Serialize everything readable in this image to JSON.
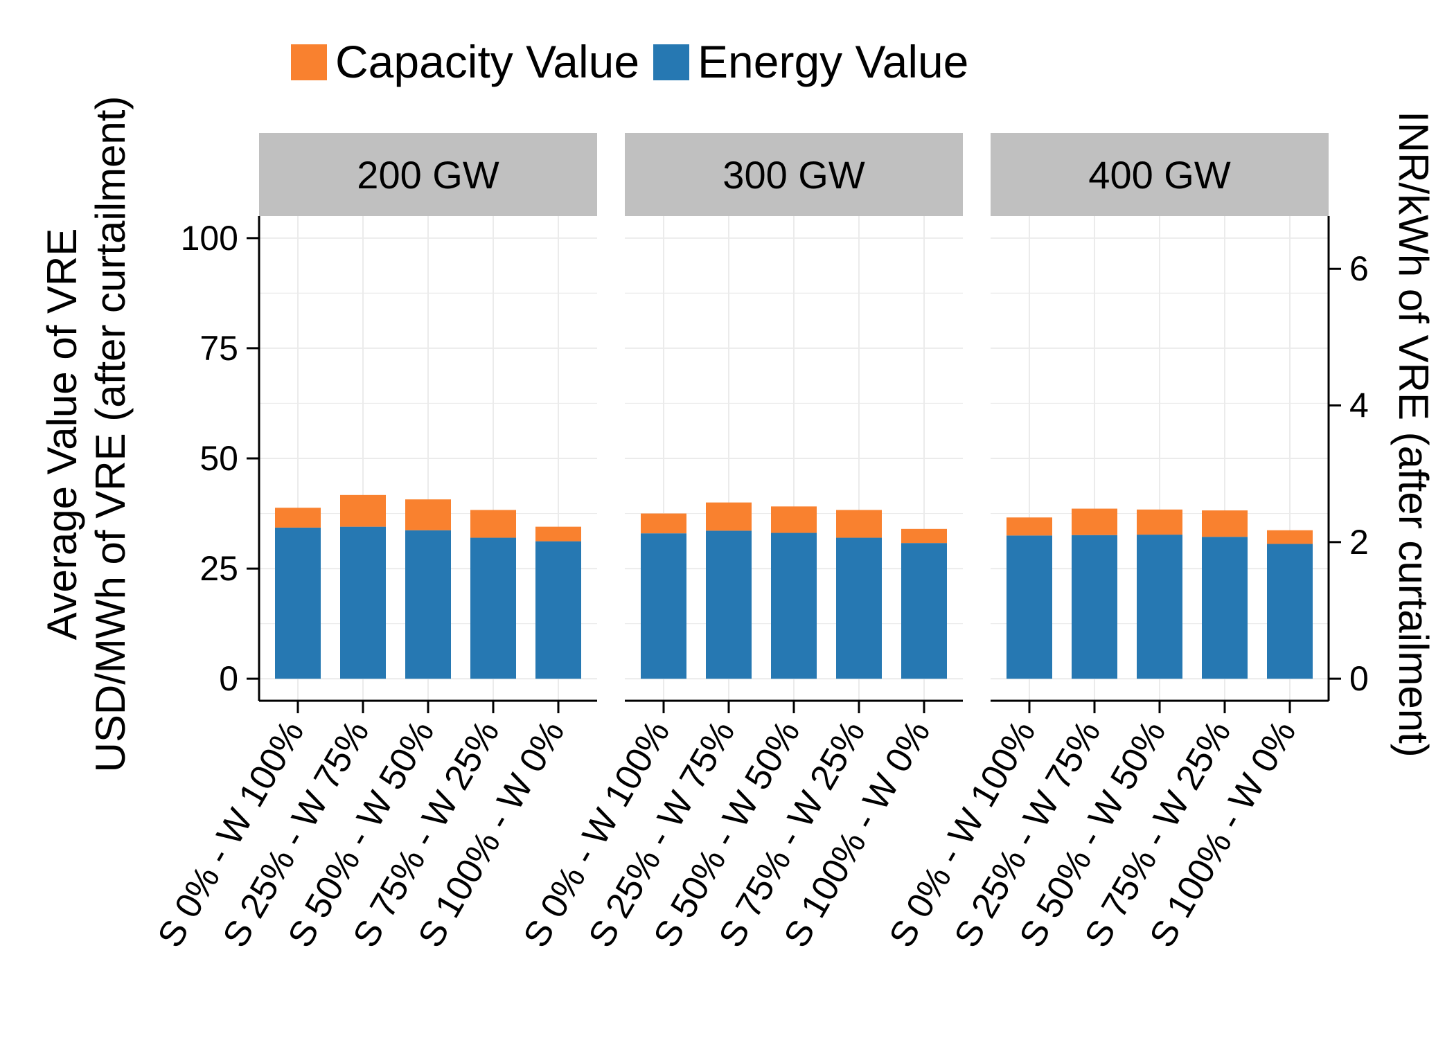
{
  "colors": {
    "capacity": "#F9812F",
    "energy": "#2678B2",
    "strip": "#C0C0C0",
    "grid": "#EBEBEB"
  },
  "chart_data": {
    "type": "bar",
    "stacked": true,
    "facets": [
      "200 GW",
      "300 GW",
      "400 GW"
    ],
    "categories": [
      "S 0% - W 100%",
      "S 25% - W 75%",
      "S 50% - W 50%",
      "S 75% - W 25%",
      "S 100% - W 0%"
    ],
    "series": [
      {
        "name": "Energy Value",
        "color_key": "energy",
        "values": {
          "200 GW": [
            34.3,
            34.5,
            33.7,
            32.0,
            31.2
          ],
          "300 GW": [
            33.0,
            33.6,
            33.1,
            32.0,
            30.8
          ],
          "400 GW": [
            32.5,
            32.6,
            32.7,
            32.2,
            30.6
          ]
        }
      },
      {
        "name": "Capacity Value",
        "color_key": "capacity",
        "values": {
          "200 GW": [
            4.5,
            7.2,
            7.0,
            6.3,
            3.3
          ],
          "300 GW": [
            4.5,
            6.4,
            6.0,
            6.3,
            3.2
          ],
          "400 GW": [
            4.1,
            6.0,
            5.7,
            6.0,
            3.1
          ]
        }
      }
    ],
    "legend": {
      "order": [
        "Capacity Value",
        "Energy Value"
      ],
      "position": "top"
    },
    "ylabel_lines": [
      "Average Value of VRE",
      "USD/MWh of VRE (after curtailment)"
    ],
    "y_ticks": [
      0,
      25,
      50,
      75,
      100
    ],
    "ylim": [
      -5,
      105
    ],
    "y2label": "INR/kWh of VRE (after curtailment)",
    "y2_ticks": [
      0,
      2,
      4,
      6
    ],
    "y2_per_y": 0.0645,
    "grid": true
  }
}
